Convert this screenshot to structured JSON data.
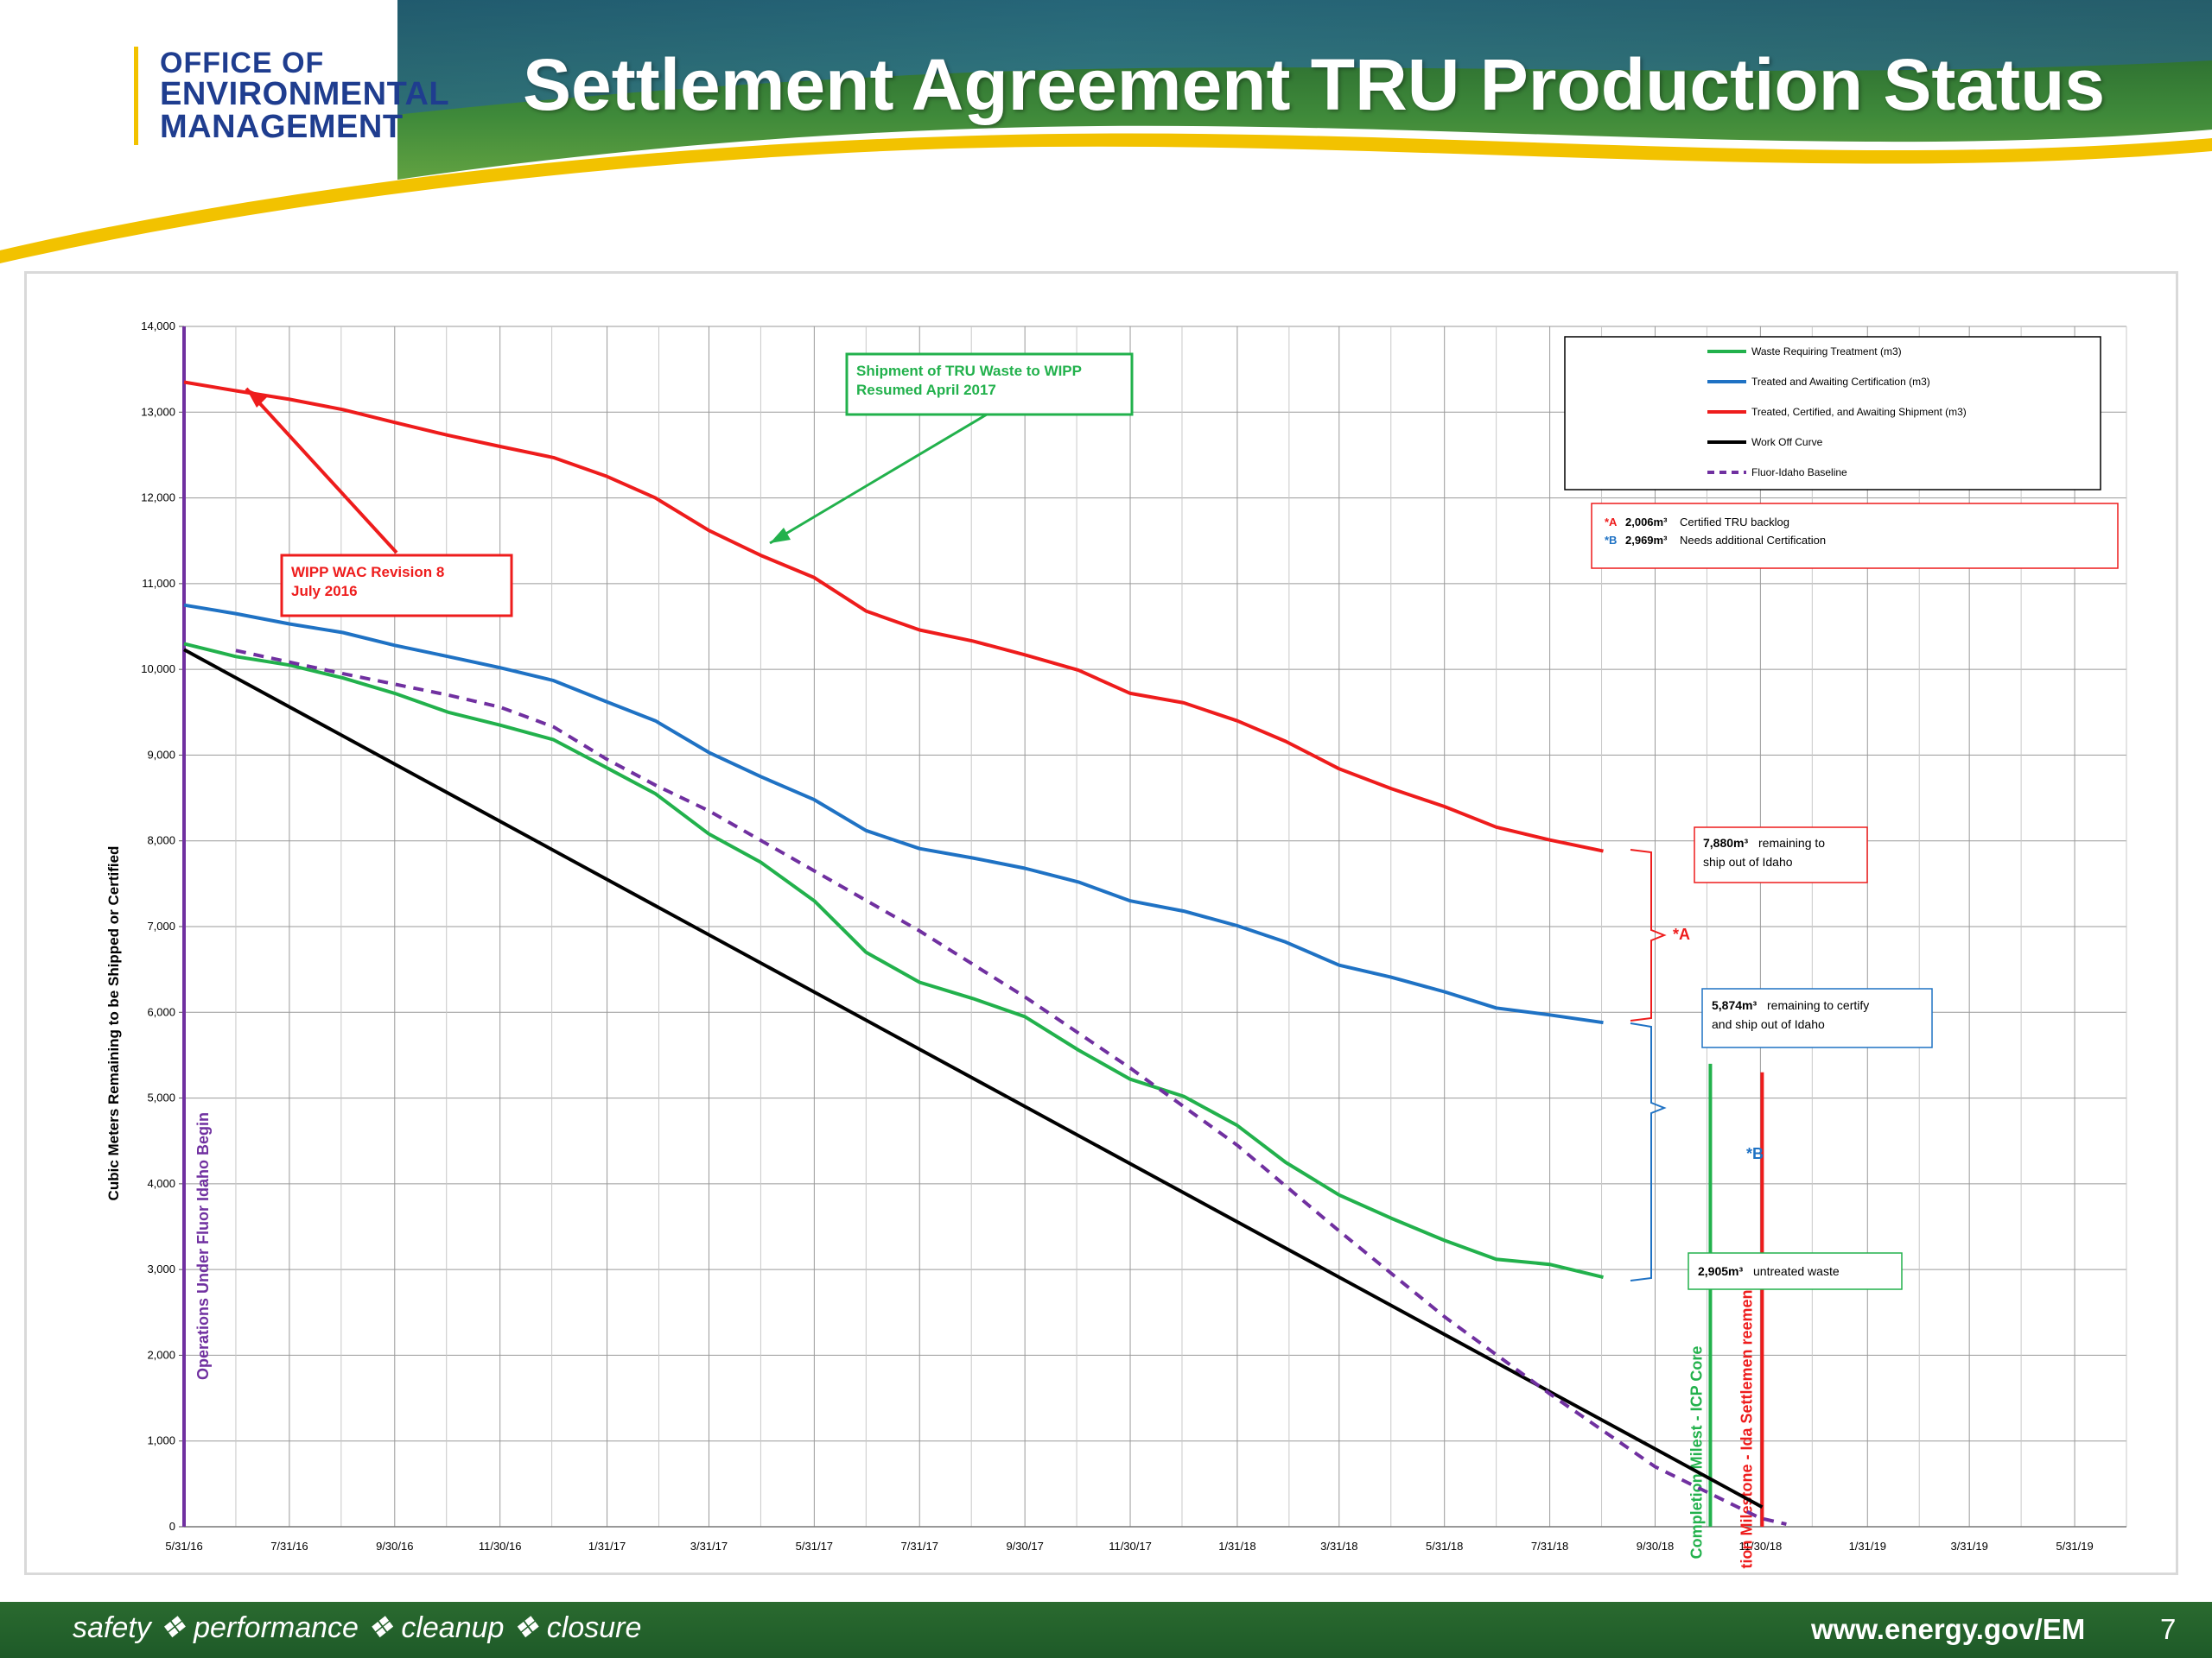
{
  "header": {
    "logo": {
      "line1": "OFFICE OF",
      "line2": "ENVIRONMENTAL",
      "line3": "MANAGEMENT"
    },
    "title": "Settlement Agreement TRU Production Status"
  },
  "footer": {
    "tagline": "safety ❖ performance ❖ cleanup ❖ closure",
    "url": "www.energy.gov/EM",
    "page_number": "7"
  },
  "colors": {
    "waste_requiring_treatment": "#22b14c",
    "treated_awaiting_cert": "#1f72c4",
    "certified_awaiting_shipment": "#ee1c1c",
    "work_off_curve": "#000000",
    "fluor_baseline": "#7030a0",
    "ops_line": "#7030a0"
  },
  "chart_data": {
    "type": "line",
    "ylabel": "Cubic Meters Remaining to be Shipped or Certified",
    "ylim": [
      0,
      14000
    ],
    "yticks": [
      "0",
      "1,000",
      "2,000",
      "3,000",
      "4,000",
      "5,000",
      "6,000",
      "7,000",
      "8,000",
      "9,000",
      "10,000",
      "11,000",
      "12,000",
      "13,000",
      "14,000"
    ],
    "xlim": [
      "2016-05-31",
      "2019-06-30"
    ],
    "xticks": [
      "5/31/16",
      "7/31/16",
      "9/30/16",
      "11/30/16",
      "1/31/17",
      "3/31/17",
      "5/31/17",
      "7/31/17",
      "9/30/17",
      "11/30/17",
      "1/31/18",
      "3/31/18",
      "5/31/18",
      "7/31/18",
      "9/30/18",
      "11/30/18",
      "1/31/19",
      "3/31/19",
      "5/31/19"
    ],
    "grid": true,
    "legend_position": "top-right",
    "series": [
      {
        "name": "Waste Requiring Treatment (m3)",
        "color": "#22b14c",
        "style": "solid",
        "points": [
          [
            "2016-05-31",
            10300
          ],
          [
            "2016-06-30",
            10150
          ],
          [
            "2016-07-31",
            10050
          ],
          [
            "2016-08-31",
            9900
          ],
          [
            "2016-09-30",
            9720
          ],
          [
            "2016-10-31",
            9500
          ],
          [
            "2016-11-30",
            9350
          ],
          [
            "2016-12-31",
            9180
          ],
          [
            "2017-01-31",
            8850
          ],
          [
            "2017-02-28",
            8550
          ],
          [
            "2017-03-31",
            8080
          ],
          [
            "2017-04-30",
            7750
          ],
          [
            "2017-05-31",
            7300
          ],
          [
            "2017-06-30",
            6700
          ],
          [
            "2017-07-31",
            6350
          ],
          [
            "2017-08-31",
            6160
          ],
          [
            "2017-09-30",
            5950
          ],
          [
            "2017-10-31",
            5560
          ],
          [
            "2017-11-30",
            5220
          ],
          [
            "2017-12-31",
            5020
          ],
          [
            "2018-01-31",
            4680
          ],
          [
            "2018-02-28",
            4250
          ],
          [
            "2018-03-31",
            3870
          ],
          [
            "2018-04-30",
            3600
          ],
          [
            "2018-05-31",
            3340
          ],
          [
            "2018-06-30",
            3120
          ],
          [
            "2018-07-31",
            3060
          ],
          [
            "2018-08-31",
            2910
          ]
        ]
      },
      {
        "name": "Treated and Awaiting Certification (m3)",
        "color": "#1f72c4",
        "style": "solid",
        "points": [
          [
            "2016-05-31",
            10750
          ],
          [
            "2016-06-30",
            10650
          ],
          [
            "2016-07-31",
            10530
          ],
          [
            "2016-08-31",
            10430
          ],
          [
            "2016-09-30",
            10280
          ],
          [
            "2016-10-31",
            10150
          ],
          [
            "2016-11-30",
            10020
          ],
          [
            "2016-12-31",
            9870
          ],
          [
            "2017-01-31",
            9620
          ],
          [
            "2017-02-28",
            9400
          ],
          [
            "2017-03-31",
            9030
          ],
          [
            "2017-04-30",
            8750
          ],
          [
            "2017-05-31",
            8480
          ],
          [
            "2017-06-30",
            8120
          ],
          [
            "2017-07-31",
            7910
          ],
          [
            "2017-08-31",
            7800
          ],
          [
            "2017-09-30",
            7680
          ],
          [
            "2017-10-31",
            7520
          ],
          [
            "2017-11-30",
            7300
          ],
          [
            "2017-12-31",
            7180
          ],
          [
            "2018-01-31",
            7010
          ],
          [
            "2018-02-28",
            6820
          ],
          [
            "2018-03-31",
            6550
          ],
          [
            "2018-04-30",
            6410
          ],
          [
            "2018-05-31",
            6240
          ],
          [
            "2018-06-30",
            6050
          ],
          [
            "2018-07-31",
            5970
          ],
          [
            "2018-08-31",
            5880
          ]
        ]
      },
      {
        "name": "Treated, Certified, and Awaiting Shipment (m3)",
        "color": "#ee1c1c",
        "style": "solid",
        "points": [
          [
            "2016-05-31",
            13350
          ],
          [
            "2016-06-30",
            13250
          ],
          [
            "2016-07-31",
            13150
          ],
          [
            "2016-08-31",
            13030
          ],
          [
            "2016-09-30",
            12880
          ],
          [
            "2016-10-31",
            12730
          ],
          [
            "2016-11-30",
            12600
          ],
          [
            "2016-12-31",
            12470
          ],
          [
            "2017-01-31",
            12250
          ],
          [
            "2017-02-28",
            12000
          ],
          [
            "2017-03-31",
            11620
          ],
          [
            "2017-04-30",
            11330
          ],
          [
            "2017-05-31",
            11070
          ],
          [
            "2017-06-30",
            10680
          ],
          [
            "2017-07-31",
            10460
          ],
          [
            "2017-08-31",
            10330
          ],
          [
            "2017-09-30",
            10170
          ],
          [
            "2017-10-31",
            9990
          ],
          [
            "2017-11-30",
            9720
          ],
          [
            "2017-12-31",
            9610
          ],
          [
            "2018-01-31",
            9400
          ],
          [
            "2018-02-28",
            9160
          ],
          [
            "2018-03-31",
            8840
          ],
          [
            "2018-04-30",
            8610
          ],
          [
            "2018-05-31",
            8400
          ],
          [
            "2018-06-30",
            8160
          ],
          [
            "2018-07-31",
            8010
          ],
          [
            "2018-08-31",
            7880
          ]
        ]
      },
      {
        "name": "Work Off Curve",
        "color": "#000000",
        "style": "solid",
        "points": [
          [
            "2016-05-31",
            10230
          ],
          [
            "2018-12-01",
            230
          ]
        ]
      },
      {
        "name": "Fluor-Idaho Baseline",
        "color": "#7030a0",
        "style": "dashed",
        "points": [
          [
            "2016-06-30",
            10220
          ],
          [
            "2016-08-31",
            9950
          ],
          [
            "2016-10-31",
            9700
          ],
          [
            "2016-11-30",
            9560
          ],
          [
            "2016-12-31",
            9330
          ],
          [
            "2017-01-31",
            8950
          ],
          [
            "2017-02-28",
            8650
          ],
          [
            "2017-03-31",
            8350
          ],
          [
            "2017-05-31",
            7650
          ],
          [
            "2017-07-31",
            6950
          ],
          [
            "2017-09-30",
            6180
          ],
          [
            "2017-11-30",
            5350
          ],
          [
            "2018-01-31",
            4450
          ],
          [
            "2018-03-31",
            3450
          ],
          [
            "2018-05-31",
            2450
          ],
          [
            "2018-07-31",
            1550
          ],
          [
            "2018-09-30",
            700
          ],
          [
            "2018-11-30",
            100
          ],
          [
            "2018-12-15",
            30
          ]
        ]
      }
    ],
    "vertical_markers": [
      {
        "label": "Operations Under Fluor Idaho Begin",
        "date": "2016-05-31",
        "color": "#7030a0"
      },
      {
        "label": "Completion Milest - ICP Core",
        "date": "2018-11-01",
        "color": "#22b14c",
        "top_value": 5400
      },
      {
        "label": "Completion Milestone - Ida Settlemen reement",
        "date": "2018-12-01",
        "color": "#ee1c1c",
        "top_value": 5300
      }
    ],
    "annotations": {
      "wipp_rev": {
        "text1": "WIPP WAC Revision 8",
        "text2": "July 2016",
        "color": "#ee1c1c"
      },
      "shipment": {
        "text1": "Shipment of TRU Waste to WIPP",
        "text2": "Resumed April 2017",
        "color": "#22b14c"
      },
      "backlog": {
        "a_marker": "*A",
        "a_value": "2,006m³",
        "a_text": "Certified TRU backlog",
        "b_marker": "*B",
        "b_value": "2,969m³",
        "b_text": "Needs additional Certification"
      },
      "red_remaining": {
        "value": "7,880m³",
        "text1": "remaining to",
        "text2": "ship out of Idaho"
      },
      "blue_remaining": {
        "value": "5,874m³",
        "text1": "remaining to certify",
        "text2": "and ship out of Idaho"
      },
      "green_remaining": {
        "value": "2,905m³",
        "text1": "untreated waste"
      },
      "brace_a": "*A",
      "brace_b": "*B"
    }
  }
}
